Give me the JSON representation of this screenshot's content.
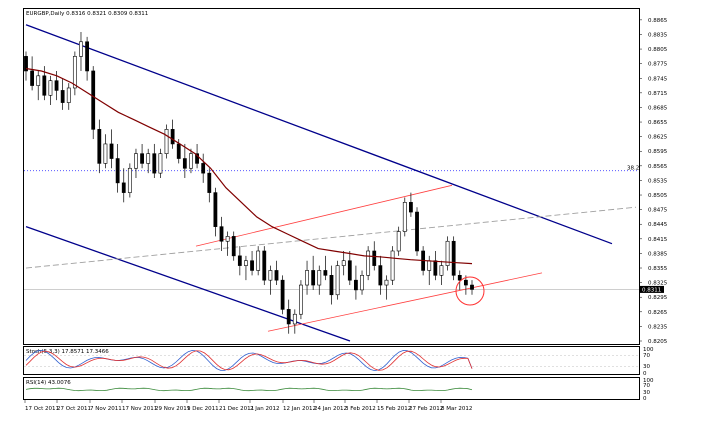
{
  "header": {
    "symbol_info": "EURGBP,Daily  0.8316 0.8321 0.8309 0.8311"
  },
  "price_axis": {
    "labels": [
      "0.8865",
      "0.8835",
      "0.8805",
      "0.8775",
      "0.8745",
      "0.8715",
      "0.8685",
      "0.8655",
      "0.8625",
      "0.8595",
      "0.8565",
      "0.8535",
      "0.8505",
      "0.8475",
      "0.8445",
      "0.8415",
      "0.8385",
      "0.8355",
      "0.8325",
      "0.8295",
      "0.8265",
      "0.8235",
      "0.8205"
    ],
    "current_price": "0.8311",
    "fib_label": "38.2"
  },
  "stoch_panel": {
    "label": "Stoch(5,3,3) 17.8571 17.3466",
    "levels": [
      "100",
      "70",
      "30",
      "0"
    ]
  },
  "rsi_panel": {
    "label": "RSI(14) 43.0076",
    "levels": [
      "100",
      "70",
      "30",
      "0"
    ]
  },
  "time_axis": {
    "labels": [
      "17 Oct 2011",
      "27 Oct 2011",
      "7 Nov 2011",
      "17 Nov 2011",
      "29 Nov 2011",
      "9 Dec 2011",
      "21 Dec 2011",
      "2 Jan 2012",
      "12 Jan 2012",
      "24 Jan 2012",
      "3 Feb 2012",
      "15 Feb 2012",
      "27 Feb 2012",
      "8 Mar 2012"
    ]
  },
  "colors": {
    "candle_up": "#ffffff",
    "candle_down": "#000000",
    "moving_average": "#800000",
    "channel_blue": "#00008b",
    "channel_red": "#ff4040",
    "dashed_trend": "#a0a0a0",
    "fib_line": "#4040ff",
    "stoch_main": "#3060d0",
    "stoch_signal": "#e03030",
    "rsi_line": "#3a8a3a"
  },
  "chart_data": {
    "type": "candlestick",
    "symbol": "EURGBP",
    "timeframe": "Daily",
    "y_range": [
      0.8205,
      0.8875
    ],
    "candles": [
      [
        0.879,
        0.88,
        0.874,
        0.876
      ],
      [
        0.876,
        0.879,
        0.872,
        0.873
      ],
      [
        0.873,
        0.876,
        0.87,
        0.875
      ],
      [
        0.875,
        0.877,
        0.87,
        0.871
      ],
      [
        0.871,
        0.875,
        0.869,
        0.874
      ],
      [
        0.874,
        0.876,
        0.87,
        0.872
      ],
      [
        0.872,
        0.8745,
        0.868,
        0.8695
      ],
      [
        0.8695,
        0.8735,
        0.868,
        0.8725
      ],
      [
        0.8725,
        0.88,
        0.871,
        0.879
      ],
      [
        0.879,
        0.884,
        0.876,
        0.882
      ],
      [
        0.882,
        0.883,
        0.874,
        0.876
      ],
      [
        0.876,
        0.877,
        0.862,
        0.864
      ],
      [
        0.864,
        0.866,
        0.855,
        0.857
      ],
      [
        0.857,
        0.863,
        0.856,
        0.861
      ],
      [
        0.861,
        0.864,
        0.856,
        0.858
      ],
      [
        0.858,
        0.861,
        0.851,
        0.853
      ],
      [
        0.853,
        0.856,
        0.849,
        0.851
      ],
      [
        0.851,
        0.857,
        0.85,
        0.856
      ],
      [
        0.856,
        0.86,
        0.854,
        0.859
      ],
      [
        0.859,
        0.861,
        0.856,
        0.857
      ],
      [
        0.857,
        0.86,
        0.855,
        0.859
      ],
      [
        0.859,
        0.861,
        0.854,
        0.855
      ],
      [
        0.855,
        0.86,
        0.854,
        0.859
      ],
      [
        0.859,
        0.865,
        0.858,
        0.864
      ],
      [
        0.864,
        0.866,
        0.86,
        0.861
      ],
      [
        0.861,
        0.862,
        0.857,
        0.858
      ],
      [
        0.858,
        0.861,
        0.854,
        0.856
      ],
      [
        0.856,
        0.86,
        0.855,
        0.859
      ],
      [
        0.859,
        0.861,
        0.856,
        0.857
      ],
      [
        0.857,
        0.859,
        0.853,
        0.855
      ],
      [
        0.855,
        0.856,
        0.849,
        0.851
      ],
      [
        0.851,
        0.852,
        0.842,
        0.844
      ],
      [
        0.844,
        0.846,
        0.839,
        0.841
      ],
      [
        0.841,
        0.843,
        0.838,
        0.842
      ],
      [
        0.842,
        0.843,
        0.837,
        0.838
      ],
      [
        0.838,
        0.84,
        0.834,
        0.836
      ],
      [
        0.836,
        0.838,
        0.833,
        0.837
      ],
      [
        0.837,
        0.839,
        0.834,
        0.835
      ],
      [
        0.835,
        0.84,
        0.834,
        0.839
      ],
      [
        0.839,
        0.84,
        0.832,
        0.833
      ],
      [
        0.833,
        0.836,
        0.83,
        0.835
      ],
      [
        0.835,
        0.837,
        0.832,
        0.833
      ],
      [
        0.833,
        0.834,
        0.826,
        0.827
      ],
      [
        0.827,
        0.829,
        0.822,
        0.824
      ],
      [
        0.824,
        0.827,
        0.822,
        0.826
      ],
      [
        0.826,
        0.833,
        0.825,
        0.832
      ],
      [
        0.832,
        0.837,
        0.83,
        0.835
      ],
      [
        0.835,
        0.838,
        0.831,
        0.832
      ],
      [
        0.832,
        0.836,
        0.83,
        0.835
      ],
      [
        0.835,
        0.838,
        0.833,
        0.834
      ],
      [
        0.834,
        0.836,
        0.828,
        0.83
      ],
      [
        0.83,
        0.837,
        0.829,
        0.836
      ],
      [
        0.836,
        0.839,
        0.834,
        0.837
      ],
      [
        0.837,
        0.839,
        0.832,
        0.833
      ],
      [
        0.833,
        0.836,
        0.829,
        0.831
      ],
      [
        0.831,
        0.835,
        0.83,
        0.834
      ],
      [
        0.834,
        0.84,
        0.833,
        0.839
      ],
      [
        0.839,
        0.841,
        0.835,
        0.836
      ],
      [
        0.836,
        0.838,
        0.83,
        0.832
      ],
      [
        0.832,
        0.834,
        0.829,
        0.833
      ],
      [
        0.833,
        0.84,
        0.832,
        0.839
      ],
      [
        0.839,
        0.844,
        0.838,
        0.843
      ],
      [
        0.843,
        0.85,
        0.842,
        0.849
      ],
      [
        0.849,
        0.851,
        0.846,
        0.847
      ],
      [
        0.847,
        0.848,
        0.838,
        0.839
      ],
      [
        0.839,
        0.84,
        0.834,
        0.835
      ],
      [
        0.835,
        0.838,
        0.832,
        0.837
      ],
      [
        0.837,
        0.839,
        0.833,
        0.834
      ],
      [
        0.834,
        0.837,
        0.832,
        0.836
      ],
      [
        0.836,
        0.842,
        0.835,
        0.841
      ],
      [
        0.841,
        0.842,
        0.833,
        0.834
      ],
      [
        0.834,
        0.835,
        0.831,
        0.833
      ],
      [
        0.833,
        0.834,
        0.83,
        0.832
      ],
      [
        0.832,
        0.833,
        0.83,
        0.8311
      ]
    ],
    "moving_average": [
      0.8765,
      0.876,
      0.875,
      0.8735,
      0.8715,
      0.8695,
      0.8675,
      0.866,
      0.8645,
      0.863,
      0.861,
      0.859,
      0.856,
      0.852,
      0.849,
      0.846,
      0.844,
      0.8425,
      0.841,
      0.8395,
      0.839,
      0.8385,
      0.838,
      0.8378,
      0.8375,
      0.8372,
      0.837,
      0.8368,
      0.8366,
      0.8364
    ],
    "lines": [
      {
        "name": "upper-blue-channel",
        "from": [
          "17 Oct 2011",
          0.8855
        ],
        "to": [
          "beyond 8 Mar 2012",
          0.8405
        ]
      },
      {
        "name": "lower-blue-channel",
        "from": [
          "17 Oct 2011",
          0.844
        ],
        "to": [
          "12 Jan 2012",
          0.8205
        ]
      },
      {
        "name": "red-channel-top",
        "from": [
          "21 Dec 2011",
          0.84
        ],
        "to": [
          "27 Feb 2012",
          0.8525
        ]
      },
      {
        "name": "red-channel-bottom",
        "from": [
          "2 Jan 2012",
          0.8225
        ],
        "to": [
          "beyond 8 Mar 2012",
          0.8345
        ]
      },
      {
        "name": "dashed-trend",
        "from": [
          "17 Oct 2011",
          0.8355
        ],
        "to": [
          "beyond 8 Mar 2012",
          0.848
        ]
      },
      {
        "name": "fib-38.2",
        "value": 0.8555
      }
    ],
    "stochastic": {
      "main_last": 17.8571,
      "signal_last": 17.3466
    },
    "rsi": {
      "last": 43.0076
    }
  }
}
